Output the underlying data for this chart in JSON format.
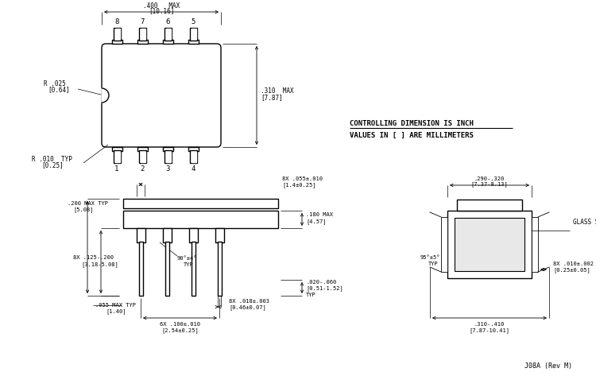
{
  "bg_color": "#ffffff",
  "line_color": "#000000",
  "title_note_line1": "CONTROLLING DIMENSION IS INCH",
  "title_note_line2": "VALUES IN [ ] ARE MILLIMETERS",
  "bottom_label": "J08A (Rev M)"
}
